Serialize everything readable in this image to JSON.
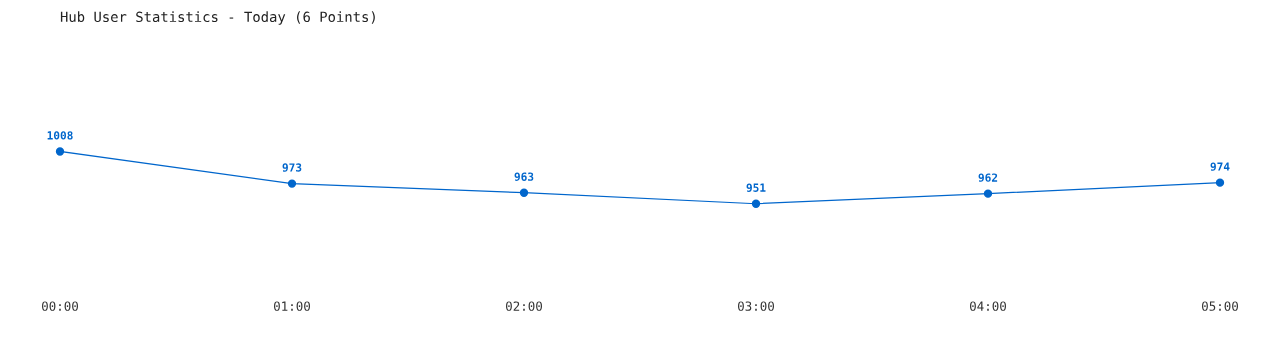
{
  "chart_data": {
    "type": "line",
    "title": "Hub User Statistics - Today (6 Points)",
    "categories": [
      "00:00",
      "01:00",
      "02:00",
      "03:00",
      "04:00",
      "05:00"
    ],
    "series": [
      {
        "color": "#0066cc",
        "values": [
          1008,
          973,
          963,
          951,
          962,
          974
        ]
      }
    ],
    "data_labels": true,
    "marker": "circle",
    "line_style": "solid",
    "grid": false,
    "legend": false,
    "tick_labels": "x"
  }
}
